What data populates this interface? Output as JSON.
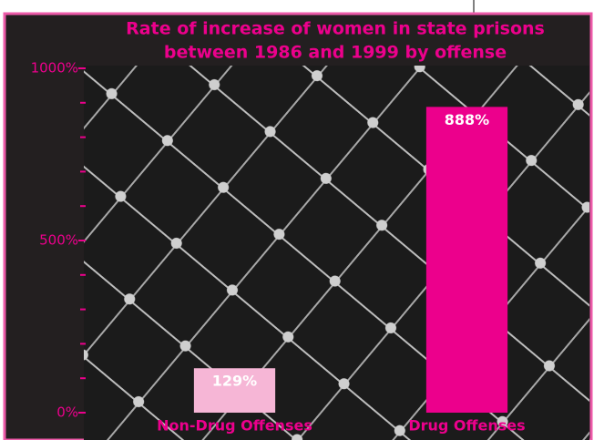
{
  "chart_data": {
    "type": "bar",
    "title": [
      "Rate of increase of women in state prisons",
      "between 1986 and 1999 by offense"
    ],
    "categories": [
      "Non-Drug Offenses",
      "Drug Offenses"
    ],
    "values": [
      129,
      888
    ],
    "value_labels": [
      "129%",
      "888%"
    ],
    "colors": [
      "#f6b6d6",
      "#ec008c"
    ],
    "ylim": [
      0,
      1000
    ],
    "yticks": [
      {
        "value": 0,
        "label": "0%"
      },
      {
        "value": 500,
        "label": "500%"
      },
      {
        "value": 1000,
        "label": "1000%"
      }
    ],
    "yminorticks": [
      100,
      200,
      300,
      400,
      600,
      700,
      800,
      900
    ]
  }
}
